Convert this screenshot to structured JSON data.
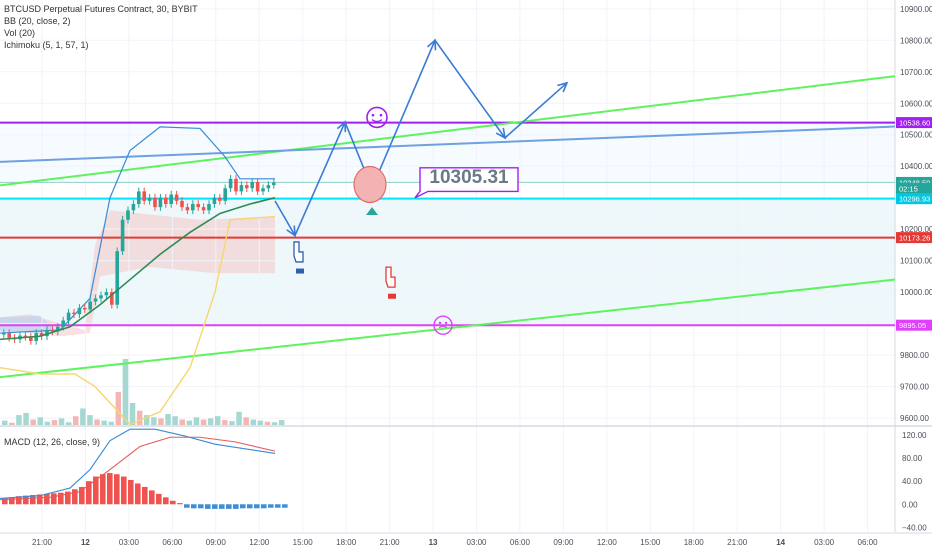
{
  "header": {
    "title": "BTCUSD Perpetual Futures Contract, 30, BYBIT",
    "indicators": [
      "BB (20, close, 2)",
      "Vol (20)",
      "Ichimoku (5, 1, 57, 1)"
    ]
  },
  "macd_label": "MACD (12, 26, close, 9)",
  "annotation": {
    "text": "10305.31"
  },
  "colors": {
    "up": "#26a69a",
    "down": "#ef5350",
    "purple": "#a020f0",
    "cyan": "#00e5ff",
    "red_line": "#e53935",
    "magenta": "#e040fb",
    "green_trend": "#5ef35e",
    "blue_trend": "#6fa0e0",
    "arrow": "#3a7bd5"
  },
  "chart_data": [
    {
      "type": "line",
      "title": "BTCUSD Perpetual Futures Contract, 30, BYBIT",
      "y_ticks": [
        10900,
        10800,
        10700,
        10600,
        10500,
        10400,
        10300,
        10200,
        10100,
        10000,
        9900,
        9800,
        9700,
        9600
      ],
      "y_tick_labels": [
        "10900.00",
        "10800.00",
        "10700.00",
        "10600.00",
        "10500.00",
        "10400.00",
        "10300.00",
        "10200.00",
        "10100.00",
        "10000.00",
        "9900.00",
        "9800.00",
        "9700.00",
        "9600.00"
      ],
      "ylim": [
        9578,
        10928
      ],
      "x_ticks": [
        "21:00",
        "12",
        "03:00",
        "06:00",
        "09:00",
        "12:00",
        "15:00",
        "18:00",
        "21:00",
        "13",
        "03:00",
        "06:00",
        "09:00",
        "12:00",
        "15:00",
        "18:00",
        "21:00",
        "14",
        "03:00",
        "06:00"
      ],
      "price_labels": [
        {
          "value": 10538.6,
          "text": "10538.60",
          "color": "#a020f0"
        },
        {
          "value": 10348.5,
          "text": "10348.50",
          "color": "#26a69a"
        },
        {
          "value": 10330,
          "text": "02:15",
          "color": "#26a69a"
        },
        {
          "value": 10296.93,
          "text": "10296.93",
          "color": "#00c8e0"
        },
        {
          "value": 10173.26,
          "text": "10173.26",
          "color": "#e53935"
        },
        {
          "value": 9895.05,
          "text": "9895.05",
          "color": "#e040fb"
        }
      ],
      "horizontal_lines": [
        {
          "name": "resistance",
          "value": 10538.6,
          "color": "#a020f0"
        },
        {
          "name": "last",
          "value": 10348.5,
          "color": "#8fd0c8"
        },
        {
          "name": "support-cyan",
          "value": 10296.93,
          "color": "#00e5ff"
        },
        {
          "name": "support-red",
          "value": 10173.26,
          "color": "#e53935"
        },
        {
          "name": "support-magenta",
          "value": 9895.05,
          "color": "#e040fb"
        }
      ],
      "series": [
        {
          "values": [
            9870,
            9855,
            9850,
            9862,
            9858,
            9845,
            9870,
            9860,
            9880,
            9875,
            9890,
            9910,
            9935,
            9930,
            9950,
            9945,
            9970,
            9980,
            9990,
            10000,
            9960,
            10130,
            10230,
            10260,
            10280,
            10320,
            10290,
            10300,
            10270,
            10300,
            10280,
            10310,
            10290,
            10270,
            10260,
            10280,
            10270,
            10260,
            10280,
            10300,
            10290,
            10330,
            10360,
            10320,
            10340,
            10330,
            10350,
            10320,
            10330,
            10340,
            10348
          ]
        }
      ]
    },
    {
      "type": "bar",
      "title": "MACD (12, 26, close, 9)",
      "y_ticks": [
        120,
        80,
        40,
        0,
        -40
      ],
      "y_tick_labels": [
        "120.00",
        "80.00",
        "40.00",
        "0.00",
        "−40.00"
      ],
      "ylim": [
        -48,
        132
      ],
      "series": [
        {
          "values": [
            10,
            12,
            14,
            15,
            16,
            17,
            18,
            19,
            20,
            22,
            26,
            30,
            40,
            48,
            52,
            54,
            52,
            48,
            42,
            36,
            30,
            24,
            18,
            12,
            6,
            2,
            -6,
            -7,
            -7,
            -8,
            -8,
            -8,
            -8,
            -8,
            -7,
            -7,
            -7,
            -7,
            -6,
            -6,
            -6
          ]
        }
      ]
    }
  ]
}
